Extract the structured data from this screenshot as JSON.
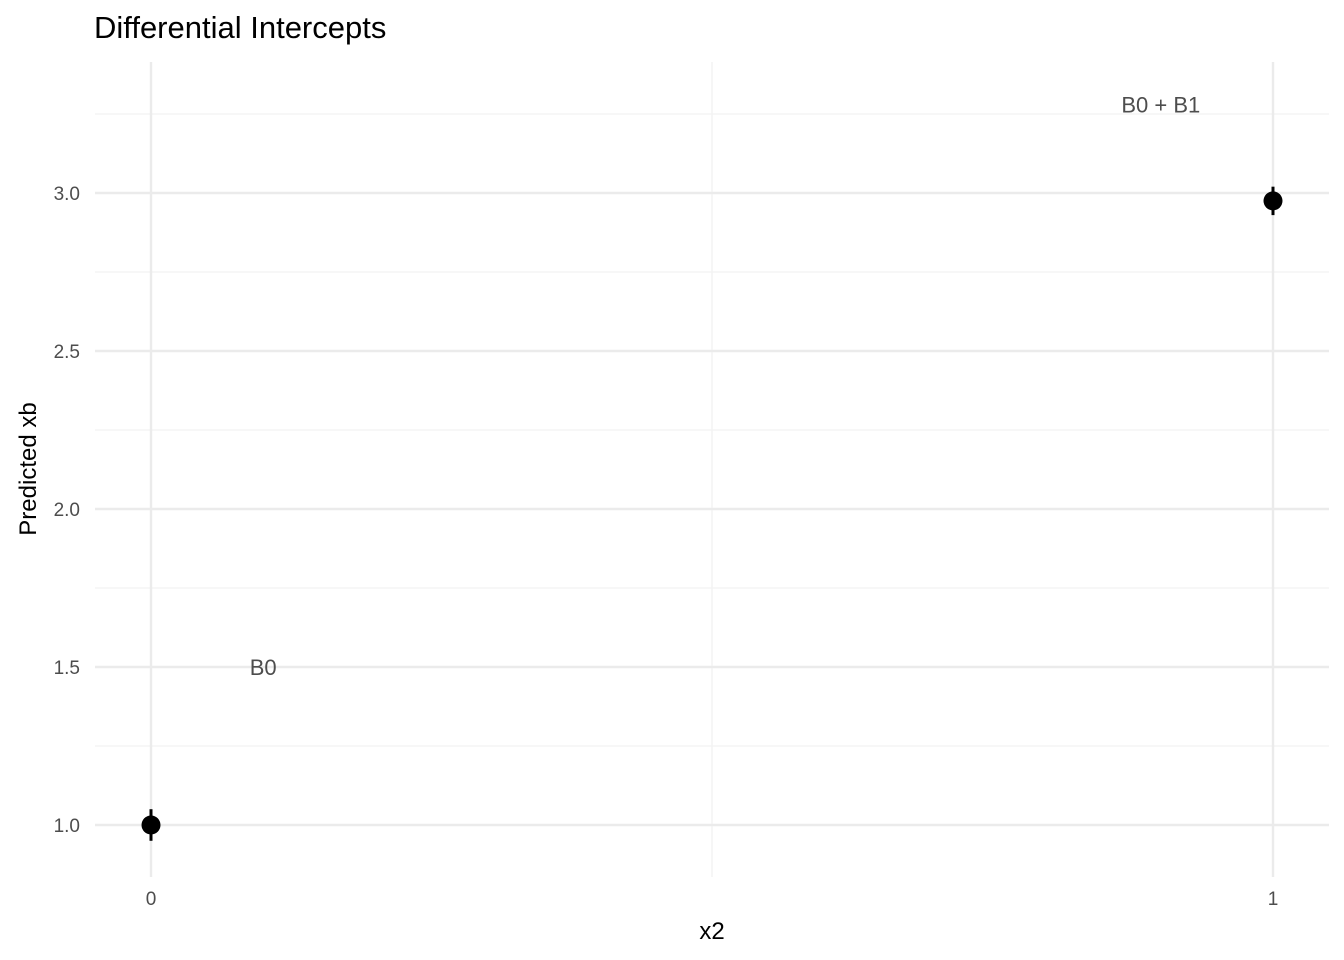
{
  "chart_data": {
    "type": "scatter",
    "title": "Differential Intercepts",
    "xlabel": "x2",
    "ylabel": "Predicted xb",
    "x_ticks": [
      "0",
      "1"
    ],
    "y_ticks": [
      "1.0",
      "1.5",
      "2.0",
      "2.5",
      "3.0"
    ],
    "xlim": [
      -0.05,
      1.05
    ],
    "ylim": [
      0.84,
      3.34
    ],
    "grid": true,
    "points": [
      {
        "x": 0,
        "y": 1.0,
        "ymin": 0.95,
        "ymax": 1.05
      },
      {
        "x": 1,
        "y": 2.975,
        "ymin": 2.93,
        "ymax": 3.02
      }
    ],
    "annotations": [
      {
        "text": "B0",
        "x": 0.1,
        "y": 1.5
      },
      {
        "text": "B0 + B1",
        "x": 0.9,
        "y": 3.28
      }
    ]
  },
  "colors": {
    "background": "#ffffff",
    "major_grid": "#ebebeb",
    "minor_grid": "#f2f2f2",
    "point": "#000000",
    "tick_text": "#4d4d4d",
    "title_text": "#000000"
  }
}
